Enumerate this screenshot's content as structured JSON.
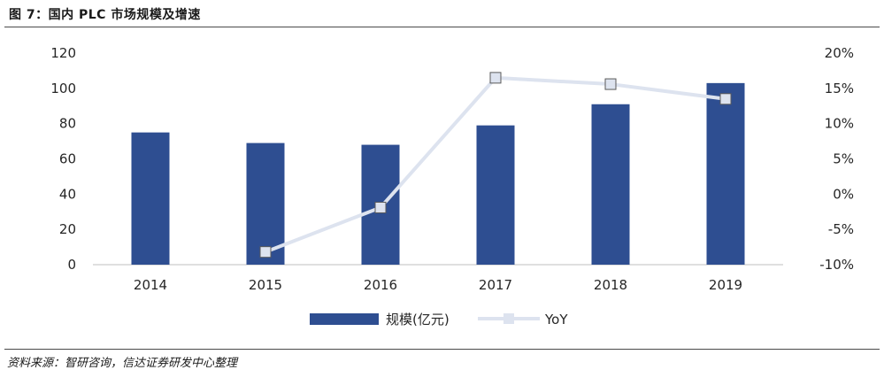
{
  "figure": {
    "title": "图 7：国内 PLC 市场规模及增速",
    "source": "资料来源：智研咨询，信达证券研发中心整理"
  },
  "colors": {
    "bar": "#2e4e91",
    "line": "#dde3ef",
    "marker": "#dde3ef",
    "axis": "#bfbfbf",
    "rule": "#4a4a4a"
  },
  "chart_data": {
    "type": "bar",
    "categories": [
      "2014",
      "2015",
      "2016",
      "2017",
      "2018",
      "2019"
    ],
    "series": [
      {
        "name": "规模(亿元)",
        "type": "bar",
        "axis": "left",
        "values": [
          75,
          69,
          68,
          79,
          91,
          103
        ]
      },
      {
        "name": "YoY",
        "type": "line",
        "axis": "right",
        "values": [
          null,
          -8.2,
          -1.9,
          16.5,
          15.6,
          13.5
        ]
      }
    ],
    "y_left": {
      "min": 0,
      "max": 120,
      "ticks": [
        "0",
        "20",
        "40",
        "60",
        "80",
        "100",
        "120"
      ]
    },
    "y_right": {
      "min": -10,
      "max": 20,
      "ticks": [
        "-10%",
        "-5%",
        "0%",
        "5%",
        "10%",
        "15%",
        "20%"
      ]
    },
    "legend_labels": [
      "规模(亿元)",
      "YoY"
    ],
    "legend_position": "bottom",
    "grid": false
  }
}
